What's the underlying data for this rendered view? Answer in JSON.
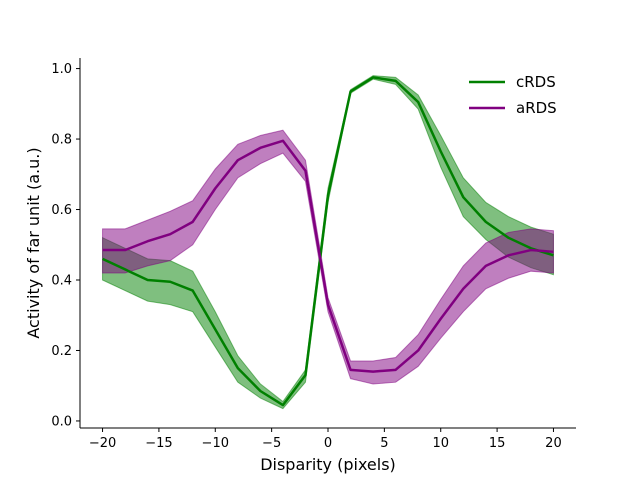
{
  "chart_data": {
    "type": "line",
    "xlabel": "Disparity (pixels)",
    "ylabel": "Activity of far unit (a.u.)",
    "xlim": [
      -22,
      22
    ],
    "ylim": [
      -0.02,
      1.03
    ],
    "xticks": [
      -20,
      -15,
      -10,
      -5,
      0,
      5,
      10,
      15,
      20
    ],
    "xtick_labels": [
      "−20",
      "−15",
      "−10",
      "−5",
      "0",
      "5",
      "10",
      "15",
      "20"
    ],
    "yticks": [
      0.0,
      0.2,
      0.4,
      0.6,
      0.8,
      1.0
    ],
    "ytick_labels": [
      "0.0",
      "0.2",
      "0.4",
      "0.6",
      "0.8",
      "1.0"
    ],
    "legend_position": "top-right",
    "x": [
      -20,
      -18,
      -16,
      -14,
      -12,
      -10,
      -8,
      -6,
      -4,
      -2,
      0,
      2,
      4,
      6,
      8,
      10,
      12,
      14,
      16,
      18,
      20
    ],
    "series": [
      {
        "name": "cRDS",
        "color": "#008000",
        "values": [
          0.46,
          0.43,
          0.4,
          0.395,
          0.37,
          0.26,
          0.15,
          0.085,
          0.045,
          0.13,
          0.64,
          0.935,
          0.975,
          0.965,
          0.905,
          0.765,
          0.635,
          0.565,
          0.52,
          0.49,
          0.47
        ],
        "lower": [
          0.4,
          0.37,
          0.34,
          0.33,
          0.31,
          0.21,
          0.11,
          0.065,
          0.035,
          0.11,
          0.62,
          0.93,
          0.97,
          0.955,
          0.885,
          0.72,
          0.58,
          0.515,
          0.465,
          0.435,
          0.415
        ],
        "upper": [
          0.52,
          0.49,
          0.46,
          0.455,
          0.425,
          0.31,
          0.185,
          0.105,
          0.055,
          0.145,
          0.66,
          0.94,
          0.98,
          0.975,
          0.925,
          0.81,
          0.69,
          0.62,
          0.58,
          0.55,
          0.53
        ]
      },
      {
        "name": "aRDS",
        "color": "#800080",
        "values": [
          0.485,
          0.485,
          0.51,
          0.53,
          0.565,
          0.66,
          0.74,
          0.775,
          0.795,
          0.71,
          0.33,
          0.145,
          0.14,
          0.145,
          0.2,
          0.29,
          0.375,
          0.44,
          0.47,
          0.485,
          0.48
        ],
        "lower": [
          0.42,
          0.42,
          0.44,
          0.455,
          0.5,
          0.6,
          0.69,
          0.73,
          0.76,
          0.68,
          0.31,
          0.12,
          0.105,
          0.11,
          0.155,
          0.235,
          0.31,
          0.375,
          0.405,
          0.425,
          0.42
        ],
        "upper": [
          0.545,
          0.545,
          0.57,
          0.595,
          0.625,
          0.715,
          0.785,
          0.81,
          0.825,
          0.74,
          0.35,
          0.17,
          0.17,
          0.18,
          0.245,
          0.345,
          0.44,
          0.505,
          0.535,
          0.545,
          0.54
        ]
      }
    ]
  }
}
